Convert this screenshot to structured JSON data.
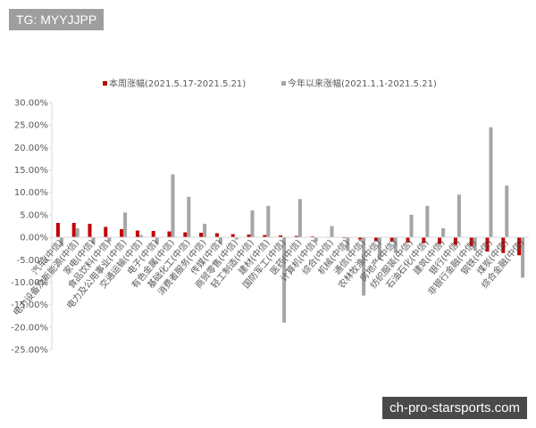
{
  "watermarks": [
    "TG: MYYJJPP",
    "ch-pro-starsports.com"
  ],
  "chart_data": {
    "type": "bar",
    "categories": [
      "汽车(中信)",
      "电力设备及新能源(中信)",
      "家电(中信)",
      "食品饮料(中信)",
      "电力及公用事业(中信)",
      "交通运输(中信)",
      "电子(中信)",
      "有色金属(中信)",
      "基础化工(中信)",
      "消费者服务(中信)",
      "传媒(中信)",
      "商贸零售(中信)",
      "轻工制造(中信)",
      "建材(中信)",
      "国防军工(中信)",
      "医药(中信)",
      "计算机(中信)",
      "综合(中信)",
      "机械(中信)",
      "通信(中信)",
      "农林牧渔(中信)",
      "房地产(中信)",
      "纺织服装(中信)",
      "石油石化(中信)",
      "建筑(中信)",
      "银行(中信)",
      "非银行金融(中信)",
      "钢铁(中信)",
      "煤炭(中信)",
      "综合金融(中信)"
    ],
    "series": [
      {
        "name": "本周涨幅(2021.5.17-2021.5.21)",
        "color": "#c00000",
        "values": [
          3.2,
          3.2,
          3.0,
          2.3,
          1.8,
          1.5,
          1.4,
          1.3,
          1.1,
          1.0,
          0.9,
          0.7,
          0.6,
          0.5,
          0.4,
          0.3,
          0.2,
          0.1,
          -0.2,
          -0.5,
          -0.9,
          -1.0,
          -1.2,
          -1.3,
          -1.5,
          -1.7,
          -2.0,
          -3.2,
          -3.5,
          -4.0
        ]
      },
      {
        "name": "今年以来涨幅(2021.1.1-2021.5.21)",
        "color": "#a5a5a5",
        "values": [
          -2.0,
          2.0,
          -1.5,
          -1.0,
          5.5,
          0.5,
          -1.5,
          14.0,
          9.0,
          3.0,
          -1.5,
          -0.5,
          6.0,
          7.0,
          -19.0,
          8.5,
          -1.0,
          2.5,
          -3.0,
          -13.0,
          -5.0,
          -3.5,
          5.0,
          7.0,
          2.0,
          9.5,
          -3.0,
          24.5,
          11.5,
          -9.0
        ]
      }
    ],
    "ylim": [
      -25,
      30
    ],
    "yticks": [
      {
        "value": 30,
        "label": "30.00%"
      },
      {
        "value": 25,
        "label": "25.00%"
      },
      {
        "value": 20,
        "label": "20.00%"
      },
      {
        "value": 15,
        "label": "15.00%"
      },
      {
        "value": 10,
        "label": "10.00%"
      },
      {
        "value": 5,
        "label": "5.00%"
      },
      {
        "value": 0,
        "label": "0.00%"
      },
      {
        "value": -5,
        "label": "-5.00%"
      },
      {
        "value": -10,
        "label": "-10.00%"
      },
      {
        "value": -15,
        "label": "-15.00%"
      },
      {
        "value": -20,
        "label": "-20.00%"
      },
      {
        "value": -25,
        "label": "-25.00%"
      }
    ],
    "legend": "top"
  }
}
